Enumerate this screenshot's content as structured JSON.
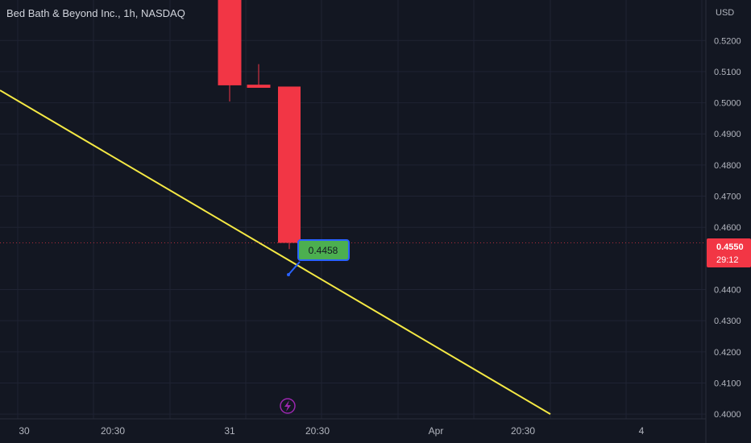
{
  "symbol_title": "Bed Bath & Beyond Inc., 1h, NASDAQ",
  "currency": "USD",
  "colors": {
    "background": "#131722",
    "grid": "#1f2333",
    "text": "#b2b5be",
    "bear": "#f23645",
    "trendline": "#f5e944",
    "price_label_bg": "#f23645",
    "callout_bg": "#4caf50",
    "callout_border": "#2962ff",
    "event_icon": "#9c27b0"
  },
  "chart_data": {
    "type": "candlestick",
    "price_axis_ticks": [
      "0.5200",
      "0.5100",
      "0.5000",
      "0.4900",
      "0.4800",
      "0.4700",
      "0.4600",
      "0.4400",
      "0.4300",
      "0.4200",
      "0.4100",
      "0.4000"
    ],
    "time_axis_ticks": [
      "30",
      "20:30",
      "31",
      "20:30",
      "Apr",
      "20:30",
      "4"
    ],
    "ylim": [
      0.399,
      0.533
    ],
    "candles": [
      {
        "open": 0.533,
        "high": 0.533,
        "low": 0.5004,
        "close": 0.5056
      },
      {
        "open": 0.5058,
        "high": 0.5124,
        "low": 0.5048,
        "close": 0.5048
      },
      {
        "open": 0.5052,
        "high": 0.5052,
        "low": 0.453,
        "close": 0.455
      }
    ],
    "current_price": "0.4550",
    "countdown": "29:12",
    "trendline": {
      "from": 0.504,
      "to": 0.4
    },
    "callout_value": "0.4458",
    "event_icon": "lightning-icon"
  }
}
